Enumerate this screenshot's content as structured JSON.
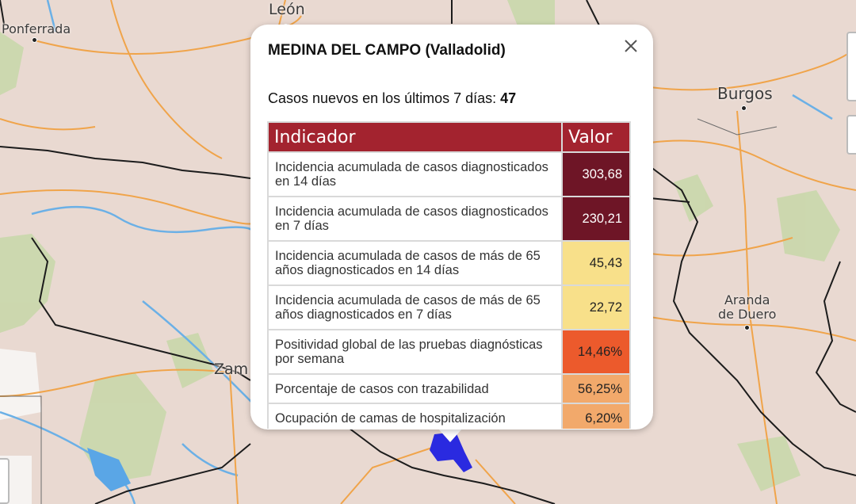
{
  "map": {
    "cities": [
      {
        "name": "León",
        "size": 19
      },
      {
        "name": "Ponferrada",
        "size": 16
      },
      {
        "name": "Burgos",
        "size": 20
      },
      {
        "name": "Aranda\nde Duero",
        "size": 16
      },
      {
        "name": "Zam",
        "size": 19
      }
    ],
    "colors": {
      "land": "#e8d8d0",
      "forest": "#c9d7ad",
      "water": "#76b6e6",
      "road": "#f0a44a",
      "border": "#1a1a1a",
      "municipality_highlight": "#2222dd"
    }
  },
  "popup": {
    "title": "MEDINA DEL CAMPO (Valladolid)",
    "close_icon": "close-icon",
    "cases_label": "Casos nuevos en los últimos 7 días:",
    "cases_value": "47",
    "table": {
      "headers": [
        "Indicador",
        "Valor"
      ],
      "rows": [
        {
          "indicator": "Incidencia acumulada de casos diagnosticados en 14 días",
          "value": "303,68",
          "bg": "#6e1526",
          "fg": "#ffffff"
        },
        {
          "indicator": "Incidencia acumulada de casos diagnosticados en 7 días",
          "value": "230,21",
          "bg": "#6e1526",
          "fg": "#ffffff"
        },
        {
          "indicator": "Incidencia acumulada de casos de más de 65 años diagnosticados en 14 días",
          "value": "45,43",
          "bg": "#f8e08a",
          "fg": "#222222"
        },
        {
          "indicator": "Incidencia acumulada de casos de más de 65 años diagnosticados en 7 días",
          "value": "22,72",
          "bg": "#f8e08a",
          "fg": "#222222"
        },
        {
          "indicator": "Positividad global de las pruebas diagnósticas por semana",
          "value": "14,46%",
          "bg": "#ec5a2c",
          "fg": "#222222"
        },
        {
          "indicator": "Porcentaje de casos con trazabilidad",
          "value": "56,25%",
          "bg": "#f2a96b",
          "fg": "#222222"
        },
        {
          "indicator": "Ocupación de camas de hospitalización",
          "value": "6,20%",
          "bg": "#f2a96b",
          "fg": "#222222"
        }
      ]
    }
  }
}
